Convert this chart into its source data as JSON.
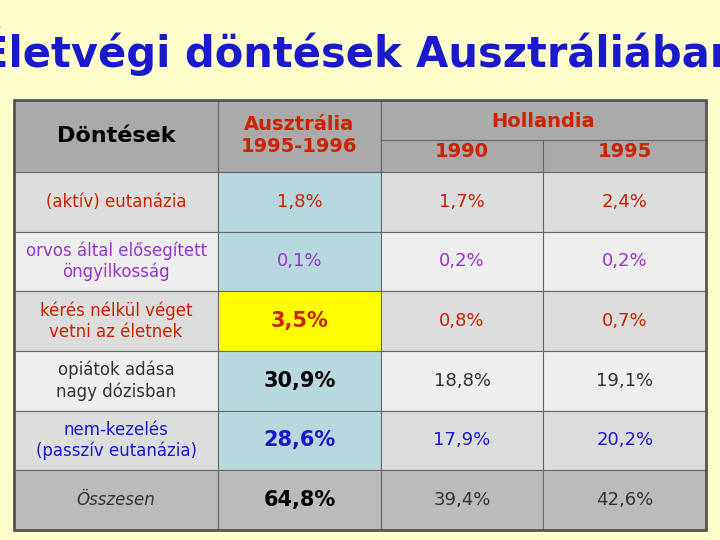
{
  "title": "Életvégi döntések Ausztráliában",
  "title_color": "#1A1ACC",
  "background_color": "#FFFFCC",
  "rows": [
    {
      "label": "(aktív) eutanázia",
      "label_color": "#CC2200",
      "label_bg": "#DDDDDD",
      "values": [
        "1,8%",
        "1,7%",
        "2,4%"
      ],
      "value_colors": [
        "#CC2200",
        "#CC2200",
        "#CC2200"
      ],
      "value_bgs": [
        "#B8D8E0",
        "#DDDDDD",
        "#DDDDDD"
      ],
      "label_italic": false,
      "val0_bold": false
    },
    {
      "label": "orvos által elősegített\nöngyilkosság",
      "label_color": "#9933CC",
      "label_bg": "#EEEEEE",
      "values": [
        "0,1%",
        "0,2%",
        "0,2%"
      ],
      "value_colors": [
        "#9933CC",
        "#9933CC",
        "#9933CC"
      ],
      "value_bgs": [
        "#B8D8E0",
        "#EEEEEE",
        "#EEEEEE"
      ],
      "label_italic": false,
      "val0_bold": false
    },
    {
      "label": "kérés nélkül véget\nvetni az életnek",
      "label_color": "#CC2200",
      "label_bg": "#DDDDDD",
      "values": [
        "3,5%",
        "0,8%",
        "0,7%"
      ],
      "value_colors": [
        "#CC2200",
        "#CC2200",
        "#CC2200"
      ],
      "value_bgs": [
        "#FFFF00",
        "#DDDDDD",
        "#DDDDDD"
      ],
      "label_italic": false,
      "val0_bold": true
    },
    {
      "label": "opiátok adása\nnagy dózisban",
      "label_color": "#333333",
      "label_bg": "#EEEEEE",
      "values": [
        "30,9%",
        "18,8%",
        "19,1%"
      ],
      "value_colors": [
        "#000000",
        "#333333",
        "#333333"
      ],
      "value_bgs": [
        "#B8D8E0",
        "#EEEEEE",
        "#EEEEEE"
      ],
      "label_italic": false,
      "val0_bold": true
    },
    {
      "label": "nem-kezelés\n(passzív eutanázia)",
      "label_color": "#1A1ACC",
      "label_bg": "#DDDDDD",
      "values": [
        "28,6%",
        "17,9%",
        "20,2%"
      ],
      "value_colors": [
        "#1A1ACC",
        "#1A1ACC",
        "#1A1ACC"
      ],
      "value_bgs": [
        "#B8D8E0",
        "#DDDDDD",
        "#DDDDDD"
      ],
      "label_italic": false,
      "val0_bold": true
    },
    {
      "label": "Összesen",
      "label_color": "#333333",
      "label_bg": "#BBBBBB",
      "values": [
        "64,8%",
        "39,4%",
        "42,6%"
      ],
      "value_colors": [
        "#000000",
        "#333333",
        "#333333"
      ],
      "value_bgs": [
        "#BBBBBB",
        "#BBBBBB",
        "#BBBBBB"
      ],
      "label_italic": true,
      "val0_bold": true
    }
  ]
}
